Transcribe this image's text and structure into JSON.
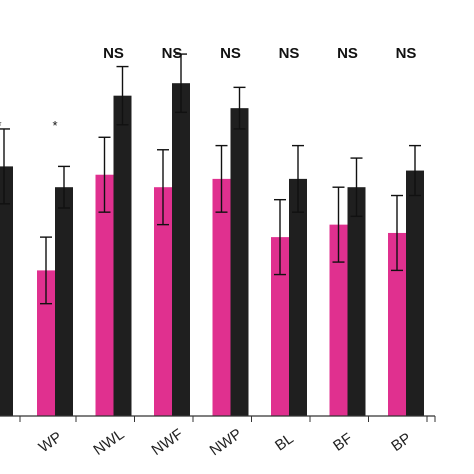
{
  "chart_data": {
    "type": "bar",
    "categories": [
      "WP",
      "NWL",
      "NWF",
      "NWP",
      "BL",
      "BF",
      "BP"
    ],
    "partial_left_group": {
      "series_2": {
        "value": 0.6,
        "error": 0.09
      },
      "annotation": "*"
    },
    "series": [
      {
        "color": "#e0308f",
        "values": [
          0.35,
          0.58,
          0.55,
          0.57,
          0.43,
          0.46,
          0.44
        ],
        "errors": [
          0.08,
          0.09,
          0.09,
          0.08,
          0.09,
          0.09,
          0.09
        ]
      },
      {
        "color": "#1f1f1f",
        "values": [
          0.55,
          0.77,
          0.8,
          0.74,
          0.57,
          0.55,
          0.59
        ],
        "errors": [
          0.05,
          0.07,
          0.07,
          0.05,
          0.08,
          0.07,
          0.06
        ]
      }
    ],
    "annotations": [
      "*",
      "NS",
      "NS",
      "NS",
      "NS",
      "NS",
      "NS"
    ],
    "ylim": [
      0,
      1
    ],
    "grid": false,
    "legend": "none",
    "title": "",
    "xlabel": "",
    "ylabel": ""
  }
}
